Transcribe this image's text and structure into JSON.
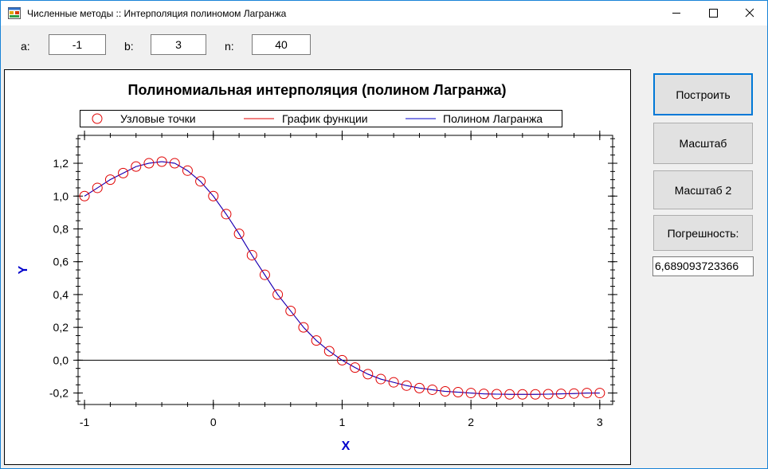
{
  "window": {
    "title": "Численные методы :: Интерполяция полиномом Лагранжа"
  },
  "params": {
    "a_label": "a:",
    "a_value": "-1",
    "b_label": "b:",
    "b_value": "3",
    "n_label": "n:",
    "n_value": "40"
  },
  "buttons": {
    "build": "Построить",
    "scale": "Масштаб",
    "scale2": "Масштаб 2",
    "error": "Погрешность:"
  },
  "error_value": "6,689093723366",
  "chart_data": {
    "type": "line",
    "title": "Полиномиальная интерполяция (полином Лагранжа)",
    "xlabel": "X",
    "ylabel": "Y",
    "xlim": [
      -1.05,
      3.1
    ],
    "ylim": [
      -0.27,
      1.37
    ],
    "x_ticks": [
      -1,
      0,
      1,
      2,
      3
    ],
    "x_tick_labels": [
      "-1",
      "0",
      "1",
      "2",
      "3"
    ],
    "y_ticks": [
      -0.2,
      0.0,
      0.2,
      0.4,
      0.6,
      0.8,
      1.0,
      1.2
    ],
    "y_tick_labels": [
      "-0,2",
      "0,0",
      "0,2",
      "0,4",
      "0,6",
      "0,8",
      "1,0",
      "1,2"
    ],
    "zero_line": true,
    "legend": {
      "placement": "top",
      "entries": [
        {
          "label": "Узловые точки",
          "marker": "circle",
          "color": "#e00000"
        },
        {
          "label": "График функции",
          "marker": "line",
          "color": "#e00000"
        },
        {
          "label": "Полином Лагранжа",
          "marker": "line",
          "color": "#0000cc"
        }
      ]
    },
    "series": [
      {
        "name": "Узловые точки",
        "kind": "scatter",
        "color": "#e00000",
        "x": [
          -1.0,
          -0.9,
          -0.8,
          -0.7,
          -0.6,
          -0.5,
          -0.4,
          -0.3,
          -0.2,
          -0.1,
          0.0,
          0.1,
          0.2,
          0.3,
          0.4,
          0.5,
          0.6,
          0.7,
          0.8,
          0.9,
          1.0,
          1.1,
          1.2,
          1.3,
          1.4,
          1.5,
          1.6,
          1.7,
          1.8,
          1.9,
          2.0,
          2.1,
          2.2,
          2.3,
          2.4,
          2.5,
          2.6,
          2.7,
          2.8,
          2.9,
          3.0
        ],
        "y": [
          1.0,
          1.05,
          1.1,
          1.14,
          1.18,
          1.2,
          1.21,
          1.2,
          1.155,
          1.09,
          1.0,
          0.89,
          0.77,
          0.64,
          0.52,
          0.4,
          0.3,
          0.2,
          0.12,
          0.055,
          0.0,
          -0.045,
          -0.085,
          -0.115,
          -0.135,
          -0.155,
          -0.17,
          -0.18,
          -0.19,
          -0.195,
          -0.2,
          -0.205,
          -0.207,
          -0.208,
          -0.208,
          -0.208,
          -0.207,
          -0.205,
          -0.203,
          -0.2,
          -0.2
        ]
      },
      {
        "name": "График функции",
        "kind": "line",
        "color": "#e00000",
        "x": [
          -1.0,
          -0.9,
          -0.8,
          -0.7,
          -0.6,
          -0.5,
          -0.4,
          -0.3,
          -0.2,
          -0.1,
          0.0,
          0.1,
          0.2,
          0.3,
          0.4,
          0.5,
          0.6,
          0.7,
          0.8,
          0.9,
          1.0,
          1.1,
          1.2,
          1.3,
          1.4,
          1.5,
          1.6,
          1.7,
          1.8,
          1.9,
          2.0,
          2.1,
          2.2,
          2.3,
          2.4,
          2.5,
          2.6,
          2.7,
          2.8,
          2.9,
          3.0
        ],
        "y": [
          1.0,
          1.05,
          1.1,
          1.14,
          1.18,
          1.2,
          1.21,
          1.2,
          1.155,
          1.09,
          1.0,
          0.89,
          0.77,
          0.64,
          0.52,
          0.4,
          0.3,
          0.2,
          0.12,
          0.055,
          0.0,
          -0.045,
          -0.085,
          -0.115,
          -0.135,
          -0.155,
          -0.17,
          -0.18,
          -0.19,
          -0.195,
          -0.2,
          -0.205,
          -0.207,
          -0.208,
          -0.208,
          -0.208,
          -0.207,
          -0.205,
          -0.203,
          -0.2,
          -0.2
        ]
      },
      {
        "name": "Полином Лагранжа",
        "kind": "line",
        "color": "#0000cc",
        "x": [
          -1.0,
          -0.9,
          -0.8,
          -0.7,
          -0.6,
          -0.5,
          -0.4,
          -0.3,
          -0.2,
          -0.1,
          0.0,
          0.1,
          0.2,
          0.3,
          0.4,
          0.5,
          0.6,
          0.7,
          0.8,
          0.9,
          1.0,
          1.1,
          1.2,
          1.3,
          1.4,
          1.5,
          1.6,
          1.7,
          1.8,
          1.9,
          2.0,
          2.1,
          2.2,
          2.3,
          2.4,
          2.5,
          2.6,
          2.7,
          2.8,
          2.9,
          3.0
        ],
        "y": [
          1.0,
          1.05,
          1.1,
          1.14,
          1.18,
          1.2,
          1.21,
          1.2,
          1.155,
          1.09,
          1.0,
          0.89,
          0.77,
          0.64,
          0.52,
          0.4,
          0.3,
          0.2,
          0.12,
          0.055,
          0.0,
          -0.045,
          -0.085,
          -0.115,
          -0.135,
          -0.155,
          -0.17,
          -0.18,
          -0.19,
          -0.195,
          -0.2,
          -0.205,
          -0.207,
          -0.208,
          -0.208,
          -0.208,
          -0.207,
          -0.205,
          -0.203,
          -0.2,
          -0.2
        ]
      }
    ]
  }
}
